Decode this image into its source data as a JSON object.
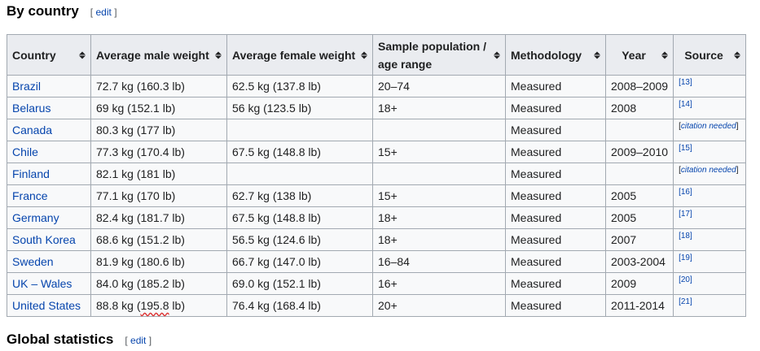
{
  "section": {
    "title": "By country",
    "edit_label": "edit",
    "bracket_open": "[",
    "bracket_close": "]"
  },
  "table": {
    "headers": [
      "Country",
      "Average male weight",
      "Average female weight",
      "Sample population / age range",
      "Methodology",
      "Year",
      "Source"
    ],
    "header_lines": {
      "sample_line1": "Sample population /",
      "sample_line2": "age range"
    },
    "rows": [
      {
        "country": "Brazil",
        "male": "72.7 kg (160.3 lb)",
        "female": "62.5 kg (137.8 lb)",
        "sample": "20–74",
        "method": "Measured",
        "year": "2008–2009",
        "source": "[13]"
      },
      {
        "country": "Belarus",
        "male": "69 kg (152.1 lb)",
        "female": "56 kg (123.5 lb)",
        "sample": "18+",
        "method": "Measured",
        "year": "2008",
        "source": "[14]"
      },
      {
        "country": "Canada",
        "male": "80.3 kg (177 lb)",
        "female": "",
        "sample": "",
        "method": "Measured",
        "year": "",
        "source": "citation needed"
      },
      {
        "country": "Chile",
        "male": "77.3 kg (170.4 lb)",
        "female": "67.5 kg (148.8 lb)",
        "sample": "15+",
        "method": "Measured",
        "year": "2009–2010",
        "source": "[15]"
      },
      {
        "country": "Finland",
        "male": "82.1 kg (181 lb)",
        "female": "",
        "sample": "",
        "method": "Measured",
        "year": "",
        "source": "citation needed"
      },
      {
        "country": "France",
        "male": "77.1 kg (170 lb)",
        "female": "62.7 kg (138 lb)",
        "sample": "15+",
        "method": "Measured",
        "year": "2005",
        "source": "[16]"
      },
      {
        "country": "Germany",
        "male": "82.4 kg (181.7 lb)",
        "female": "67.5 kg (148.8 lb)",
        "sample": "18+",
        "method": "Measured",
        "year": "2005",
        "source": "[17]"
      },
      {
        "country": "South Korea",
        "male": "68.6 kg (151.2 lb)",
        "female": "56.5 kg (124.6 lb)",
        "sample": "18+",
        "method": "Measured",
        "year": "2007",
        "source": "[18]"
      },
      {
        "country": "Sweden",
        "male": "81.9 kg (180.6 lb)",
        "female": "66.7 kg (147.0 lb)",
        "sample": "16–84",
        "method": "Measured",
        "year": "2003-2004",
        "source": "[19]"
      },
      {
        "country": "UK – Wales",
        "male": "84.0 kg (185.2 lb)",
        "female": "69.0 kg (152.1 lb)",
        "sample": "16+",
        "method": "Measured",
        "year": "2009",
        "source": "[20]"
      },
      {
        "country": "United States",
        "male_pre": "88.8 kg (",
        "male_mark": "195.8",
        "male_post": " lb)",
        "female": "76.4 kg (168.4 lb)",
        "sample": "20+",
        "method": "Measured",
        "year": "2011-2014",
        "source": "[21]"
      }
    ]
  },
  "next_section": {
    "title": "Global statistics",
    "edit_label": "edit"
  }
}
